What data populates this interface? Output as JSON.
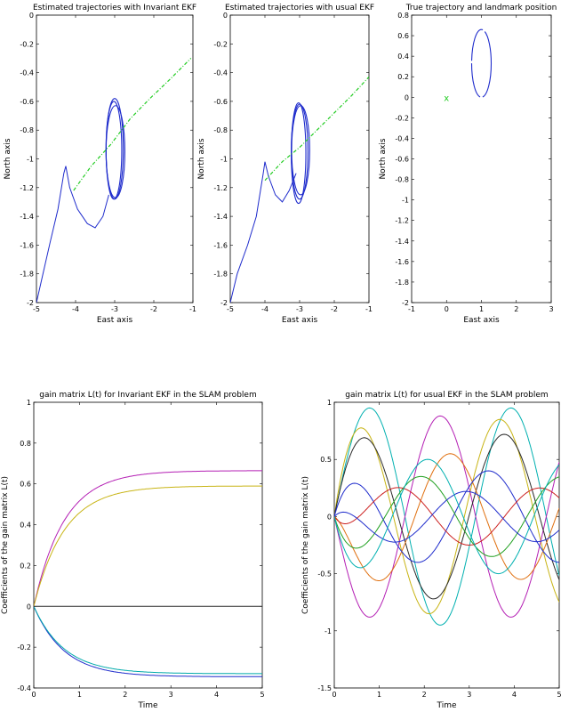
{
  "chart_data": [
    {
      "type": "line",
      "title": "Estimated trajectories with Invariant EKF",
      "xlabel": "East axis",
      "ylabel": "North axis",
      "xlim": [
        -5,
        -1
      ],
      "ylim": [
        -2,
        0
      ],
      "xticks": [
        -5,
        -4,
        -3,
        -2,
        -1
      ],
      "yticks": [
        -2,
        -1.8,
        -1.6,
        -1.4,
        -1.2,
        -1,
        -0.8,
        -0.6,
        -0.4,
        -0.2,
        0
      ],
      "trajectory": {
        "color": "#1f2ccc",
        "transient": [
          [
            -5,
            -2
          ],
          [
            -4.85,
            -1.82
          ],
          [
            -4.65,
            -1.58
          ],
          [
            -4.45,
            -1.35
          ],
          [
            -4.3,
            -1.1
          ],
          [
            -4.25,
            -1.05
          ],
          [
            -4.15,
            -1.2
          ],
          [
            -3.95,
            -1.35
          ],
          [
            -3.7,
            -1.45
          ],
          [
            -3.5,
            -1.48
          ],
          [
            -3.3,
            -1.4
          ],
          [
            -3.15,
            -1.25
          ]
        ],
        "loops": [
          {
            "cx": -3.0,
            "cy": -0.93,
            "rx": 0.22,
            "ry": 0.35
          },
          {
            "cx": -2.98,
            "cy": -0.95,
            "rx": 0.24,
            "ry": 0.32
          },
          {
            "cx": -3.02,
            "cy": -0.94,
            "rx": 0.2,
            "ry": 0.34
          }
        ]
      },
      "landmark_estimate": {
        "color": "#22cc22",
        "points": [
          [
            -4.05,
            -1.22
          ],
          [
            -3.6,
            -1.05
          ],
          [
            -3.1,
            -0.9
          ],
          [
            -2.6,
            -0.72
          ],
          [
            -2.1,
            -0.58
          ],
          [
            -1.6,
            -0.45
          ],
          [
            -1.05,
            -0.3
          ]
        ]
      }
    },
    {
      "type": "line",
      "title": "Estimated trajectories with usual EKF",
      "xlabel": "East axis",
      "ylabel": "North axis",
      "xlim": [
        -5,
        -1
      ],
      "ylim": [
        -2,
        0
      ],
      "xticks": [
        -5,
        -4,
        -3,
        -2,
        -1
      ],
      "yticks": [
        -2,
        -1.8,
        -1.6,
        -1.4,
        -1.2,
        -1,
        -0.8,
        -0.6,
        -0.4,
        -0.2,
        0
      ],
      "trajectory": {
        "color": "#1f2ccc",
        "transient": [
          [
            -5,
            -2
          ],
          [
            -4.8,
            -1.8
          ],
          [
            -4.5,
            -1.6
          ],
          [
            -4.25,
            -1.4
          ],
          [
            -4.05,
            -1.1
          ],
          [
            -4.0,
            -1.02
          ],
          [
            -3.9,
            -1.12
          ],
          [
            -3.7,
            -1.25
          ],
          [
            -3.5,
            -1.3
          ],
          [
            -3.3,
            -1.22
          ],
          [
            -3.1,
            -1.1
          ]
        ],
        "loops": [
          {
            "cx": -3.0,
            "cy": -0.95,
            "rx": 0.24,
            "ry": 0.33
          },
          {
            "cx": -2.97,
            "cy": -0.94,
            "rx": 0.26,
            "ry": 0.31
          },
          {
            "cx": -3.03,
            "cy": -0.96,
            "rx": 0.21,
            "ry": 0.35
          }
        ]
      },
      "landmark_estimate": {
        "color": "#22cc22",
        "points": [
          [
            -4.0,
            -1.15
          ],
          [
            -3.5,
            -1.02
          ],
          [
            -3.0,
            -0.92
          ],
          [
            -2.5,
            -0.8
          ],
          [
            -2.0,
            -0.68
          ],
          [
            -1.5,
            -0.56
          ],
          [
            -1.0,
            -0.43
          ]
        ]
      }
    },
    {
      "type": "scatter",
      "title": "True trajectory and landmark position",
      "xlabel": "East axis",
      "ylabel": "North axis",
      "xlim": [
        -1,
        3
      ],
      "ylim": [
        -2,
        0.8
      ],
      "xticks": [
        -1,
        0,
        1,
        2,
        3
      ],
      "yticks": [
        -2,
        -1.8,
        -1.6,
        -1.4,
        -1.2,
        -1,
        -0.8,
        -0.6,
        -0.4,
        -0.2,
        0,
        0.2,
        0.4,
        0.6,
        0.8
      ],
      "trajectory": {
        "color": "#1f2ccc",
        "cx": 1.0,
        "cy": 0.33,
        "rx": 0.28,
        "ry": 0.33
      },
      "landmark": {
        "x": 0,
        "y": 0,
        "marker": "x",
        "color": "#22cc22"
      }
    },
    {
      "type": "line",
      "title": "gain matrix L(t) for Invariant EKF in the SLAM problem",
      "xlabel": "Time",
      "ylabel": "Coefficients of the gain matrix L(t)",
      "xlim": [
        0,
        5
      ],
      "ylim": [
        -0.4,
        1
      ],
      "xticks": [
        0,
        1,
        2,
        3,
        4,
        5
      ],
      "yticks": [
        -0.4,
        -0.2,
        0,
        0.2,
        0.4,
        0.6,
        0.8,
        1
      ],
      "series": [
        {
          "color": "#b41fb4",
          "final": 0.665,
          "rate": 1.5
        },
        {
          "color": "#c8b414",
          "final": 0.59,
          "rate": 1.5
        },
        {
          "color": "#1f2ccc",
          "final": -0.345,
          "rate": 1.5
        },
        {
          "color": "#00aaaa",
          "final": -0.33,
          "rate": 1.5
        },
        {
          "color": "#2a2a2a",
          "final": 0,
          "rate": 1.5
        }
      ]
    },
    {
      "type": "line",
      "title": "gain matrix L(t) for usual EKF in the SLAM problem",
      "xlabel": "Time",
      "ylabel": "Coefficients of the gain matrix L(t)",
      "xlim": [
        0,
        5
      ],
      "ylim": [
        -1.5,
        1
      ],
      "xticks": [
        0,
        1,
        2,
        3,
        4,
        5
      ],
      "yticks": [
        -1.5,
        -1,
        -0.5,
        0,
        0.5,
        1
      ],
      "series": [
        {
          "color": "#00b0b0",
          "amp": 0.95,
          "omega": 2.0,
          "phase": 0.0
        },
        {
          "color": "#c8b414",
          "amp": 0.85,
          "omega": 2.0,
          "phase": 0.5
        },
        {
          "color": "#b41fb4",
          "amp": 0.88,
          "omega": 2.0,
          "phase": 3.14
        },
        {
          "color": "#2a2a2a",
          "amp": 0.72,
          "omega": 2.0,
          "phase": 0.3
        },
        {
          "color": "#e07010",
          "amp": 0.55,
          "omega": 2.0,
          "phase": 2.7
        },
        {
          "color": "#1f2ccc",
          "amp": 0.4,
          "omega": 2.0,
          "phase": 1.0
        },
        {
          "color": "#20a020",
          "amp": 0.35,
          "omega": 2.0,
          "phase": 4.0
        },
        {
          "color": "#cc2020",
          "amp": 0.25,
          "omega": 2.0,
          "phase": 5.0
        },
        {
          "color": "#1f2ccc",
          "amp": 0.22,
          "omega": 2.0,
          "phase": 2.0
        },
        {
          "color": "#00b0b0",
          "amp": 0.5,
          "omega": 2.0,
          "phase": 3.7
        }
      ]
    }
  ]
}
